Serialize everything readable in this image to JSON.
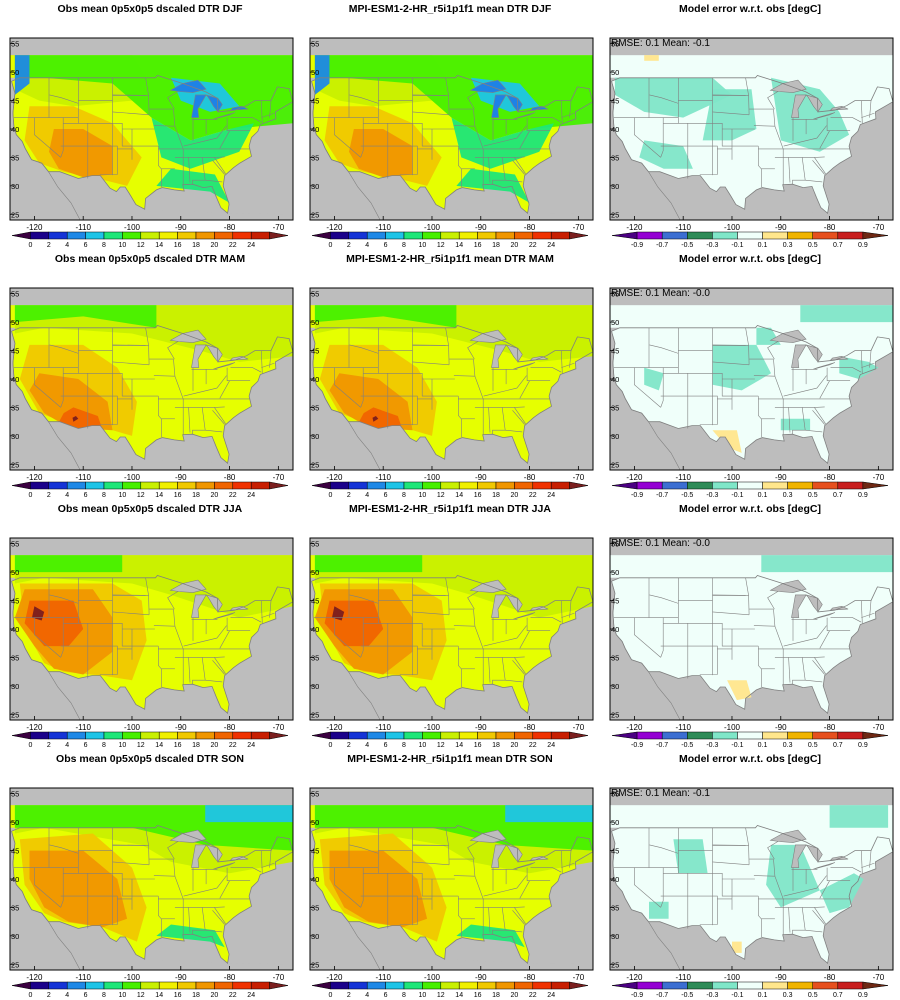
{
  "panels": [
    {
      "title": "Obs mean 0p5x0p5 dscaled DTR DJF",
      "kind": "dtr",
      "season": "DJF"
    },
    {
      "title": "MPI-ESM1-2-HR_r5i1p1f1 mean DTR DJF",
      "kind": "dtr",
      "season": "DJF"
    },
    {
      "title": "Model error w.r.t. obs [degC]",
      "kind": "err",
      "season": "DJF",
      "rmse": "RMSE: 0.1",
      "mean": "Mean: -0.1"
    },
    {
      "title": "Obs mean 0p5x0p5 dscaled DTR MAM",
      "kind": "dtr",
      "season": "MAM"
    },
    {
      "title": "MPI-ESM1-2-HR_r5i1p1f1 mean DTR MAM",
      "kind": "dtr",
      "season": "MAM"
    },
    {
      "title": "Model error w.r.t. obs [degC]",
      "kind": "err",
      "season": "MAM",
      "rmse": "RMSE: 0.1",
      "mean": "Mean: -0.0"
    },
    {
      "title": "Obs mean 0p5x0p5 dscaled DTR JJA",
      "kind": "dtr",
      "season": "JJA"
    },
    {
      "title": "MPI-ESM1-2-HR_r5i1p1f1 mean DTR JJA",
      "kind": "dtr",
      "season": "JJA"
    },
    {
      "title": "Model error w.r.t. obs [degC]",
      "kind": "err",
      "season": "JJA",
      "rmse": "RMSE: 0.1",
      "mean": "Mean: -0.0"
    },
    {
      "title": "Obs mean 0p5x0p5 dscaled DTR SON",
      "kind": "dtr",
      "season": "SON"
    },
    {
      "title": "MPI-ESM1-2-HR_r5i1p1f1 mean DTR SON",
      "kind": "dtr",
      "season": "SON"
    },
    {
      "title": "Model error w.r.t. obs [degC]",
      "kind": "err",
      "season": "SON",
      "rmse": "RMSE: 0.1",
      "mean": "Mean: -0.1"
    }
  ],
  "axes": {
    "lon_ticks": [
      "-120",
      "-110",
      "-100",
      "-90",
      "-80",
      "-70"
    ],
    "lat_ticks": [
      "25",
      "30",
      "35",
      "40",
      "45",
      "50",
      "55"
    ],
    "lon_range": [
      -125,
      -67
    ],
    "lat_range": [
      24,
      56
    ]
  },
  "colorbars": {
    "dtr": {
      "labels": [
        "0",
        "2",
        "4",
        "6",
        "8",
        "10",
        "12",
        "14",
        "16",
        "18",
        "20",
        "22",
        "24"
      ],
      "colors": [
        "#3a0040",
        "#1a008a",
        "#1433d6",
        "#1e88e6",
        "#1ec4e6",
        "#1ee678",
        "#46f000",
        "#c8f000",
        "#f0f000",
        "#f0c800",
        "#f09600",
        "#f06400",
        "#f03200",
        "#c81e00",
        "#7a1e1e"
      ]
    },
    "err": {
      "labels": [
        "-0.9",
        "-0.7",
        "-0.5",
        "-0.3",
        "-0.1",
        "0.1",
        "0.3",
        "0.5",
        "0.7",
        "0.9"
      ],
      "colors": [
        "#4b0082",
        "#9400d3",
        "#3c6ed2",
        "#2e8b57",
        "#7fe6c8",
        "#f0fffa",
        "#ffe68c",
        "#f0b400",
        "#e6501e",
        "#c81e1e",
        "#6e2814"
      ]
    }
  },
  "map_colors": {
    "land_default": "#e6ff00",
    "nodata": "#bdbdbd",
    "water": "#1e82e6",
    "state_lines": "#808080",
    "err_background": "#f0fffa",
    "err_negative": "#7fe6c8",
    "err_positive": "#ffe68c"
  }
}
